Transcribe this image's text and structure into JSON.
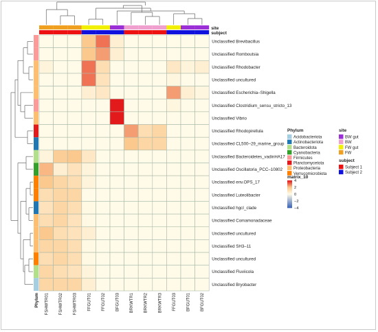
{
  "chart_data": {
    "type": "heatmap",
    "title": "",
    "annotation_labels": {
      "site": "site",
      "subject": "subject",
      "phylum_axis": "Phylum"
    },
    "columns": [
      "FSHWTR01",
      "FSHWTR02",
      "FSHWTR03",
      "FFGUT01",
      "FFGUT02",
      "BFGUT03",
      "BRKWTR1",
      "BRKWTR2",
      "BRKWTR3",
      "FFGUT03",
      "BFGUT01",
      "BFGUT02"
    ],
    "column_site": [
      "FW",
      "FW",
      "FW",
      "FW gut",
      "FW gut",
      "BW gut",
      "BW",
      "BW",
      "BW",
      "FW gut",
      "BW gut",
      "BW gut"
    ],
    "column_subject": [
      "Subject 1",
      "Subject 1",
      "Subject 1",
      "Subject 2",
      "Subject 2",
      "Subject 2",
      "Subject 1",
      "Subject 1",
      "Subject 1",
      "Subject 2",
      "Subject 2",
      "Subject 2"
    ],
    "rows": [
      "Unclassified  Brevibacillus",
      "Unclassified  Romboutsia",
      "Unclassified  Rhodobacter",
      "Unclassified  uncultured",
      "Unclassified  Escherichia–Shigella",
      "Unclassified  Clostridium_sensu_stricto_13",
      "Unclassified  Vibrio",
      "Unclassified  Rhodopirellula",
      "Unclassified  CL500–29_marine_group",
      "Unclassified  Bacteroidetes_vadinHA17",
      "Unclassified  Oscillatoria_PCC–10802",
      "Unclassified  env.OPS_17",
      "Unclassified  Luteolibacter",
      "Unclassified  hgcI_clade",
      "Unclassified  Comamonadaceae",
      "Unclassified  uncultured",
      "Unclassified  SH3–11",
      "Unclassified  uncultured",
      "Unclassified  Fluviicola",
      "Unclassified  Bryobacter"
    ],
    "row_phylum": [
      "Firmicutes",
      "Firmicutes",
      "Proteobacteria",
      "Proteobacteria",
      "Proteobacteria",
      "Firmicutes",
      "Proteobacteria",
      "Planctomycetota",
      "Actinobacteriota",
      "Bacteroidota",
      "Cyanobacteria",
      "Verrucomicrobiota",
      "Verrucomicrobiota",
      "Actinobacteriota",
      "Proteobacteria",
      "Proteobacteria",
      "Proteobacteria",
      "Verrucomicrobiota",
      "Bacteroidota",
      "Acidobacteriota"
    ],
    "values": [
      [
        0,
        0,
        0,
        2,
        3,
        0.5,
        0,
        0,
        0,
        0,
        0,
        0
      ],
      [
        0,
        0,
        0,
        2,
        2.5,
        0.5,
        0,
        0,
        0,
        0,
        0,
        0
      ],
      [
        0.3,
        0,
        0,
        3,
        1.2,
        0,
        0,
        0,
        0,
        0.8,
        0.3,
        0.5
      ],
      [
        0,
        0,
        0,
        3,
        1,
        0,
        0,
        0,
        0,
        0.2,
        0,
        0
      ],
      [
        0,
        0,
        0,
        0.5,
        0.8,
        0,
        0,
        0,
        0,
        2.5,
        0.5,
        0.2
      ],
      [
        0,
        0,
        0,
        0,
        0,
        4,
        0,
        0,
        0,
        0.2,
        0,
        0
      ],
      [
        0,
        0,
        0,
        0,
        0,
        4,
        0,
        0,
        0,
        0,
        0,
        0
      ],
      [
        0,
        0,
        0,
        0,
        0,
        0,
        2.5,
        1.2,
        1.5,
        0,
        0,
        0
      ],
      [
        0,
        0,
        0,
        0,
        0,
        0,
        2,
        1.5,
        1.5,
        0,
        0,
        0
      ],
      [
        0.3,
        1.8,
        2,
        0.8,
        0,
        0,
        0,
        0,
        0,
        0,
        0,
        0
      ],
      [
        2.2,
        0.5,
        1,
        0.3,
        0,
        0,
        0,
        0,
        0,
        0,
        0,
        0
      ],
      [
        2,
        1.5,
        1.2,
        0.3,
        0,
        0,
        0,
        0,
        0,
        0,
        0,
        0
      ],
      [
        1.2,
        1.5,
        1.5,
        0,
        0,
        0,
        0,
        0,
        0,
        0,
        0,
        0
      ],
      [
        1,
        1.5,
        1.2,
        0.1,
        0,
        0,
        0,
        0,
        0,
        0,
        0,
        0
      ],
      [
        1.2,
        1.5,
        1,
        0.1,
        0,
        0,
        0,
        0,
        0,
        0,
        0,
        0
      ],
      [
        2,
        1.2,
        1,
        0.5,
        0,
        0,
        0,
        0,
        0,
        0,
        0,
        0
      ],
      [
        1.5,
        1.5,
        1.2,
        0.1,
        0,
        0,
        0,
        0,
        0,
        0,
        0,
        0
      ],
      [
        1.2,
        1.5,
        1.2,
        0.1,
        0,
        0,
        0,
        0,
        0,
        0,
        0,
        0
      ],
      [
        1.5,
        1.2,
        1,
        0.3,
        0,
        0,
        0,
        0,
        0,
        0,
        0,
        0
      ],
      [
        1.5,
        1.5,
        1.5,
        0.5,
        0,
        0,
        0,
        0,
        0,
        0,
        0,
        0
      ]
    ],
    "color_scale": {
      "title": "matrix_10",
      "ticks": [
        4,
        2,
        0,
        -2,
        -4
      ],
      "range": [
        -4,
        4
      ],
      "colors": [
        "#3d66b8",
        "#fffbe8",
        "#fbc98e",
        "#e31a1c"
      ]
    },
    "legends": {
      "phylum": {
        "title": "Phylum",
        "entries": [
          {
            "label": "Acidobacteriota",
            "color": "#a6cee3"
          },
          {
            "label": "Actinobacteriota",
            "color": "#1f78b4"
          },
          {
            "label": "Bacteroidota",
            "color": "#b2df8a"
          },
          {
            "label": "Cyanobacteria",
            "color": "#33a02c"
          },
          {
            "label": "Firmicutes",
            "color": "#fb9a99"
          },
          {
            "label": "Planctomycetota",
            "color": "#e31a1c"
          },
          {
            "label": "Proteobacteria",
            "color": "#fdbf6f"
          },
          {
            "label": "Verrucomicrobiota",
            "color": "#ff7f00"
          }
        ]
      },
      "site": {
        "title": "site",
        "entries": [
          {
            "label": "BW gut",
            "color": "#9b30d6"
          },
          {
            "label": "BW",
            "color": "#f0a0cf"
          },
          {
            "label": "FW gut",
            "color": "#f0f000"
          },
          {
            "label": "FW",
            "color": "#f0a020"
          }
        ]
      },
      "subject": {
        "title": "subject",
        "entries": [
          {
            "label": "Subject 1",
            "color": "#ee1111"
          },
          {
            "label": "Subject 2",
            "color": "#1111dd"
          }
        ]
      }
    }
  }
}
